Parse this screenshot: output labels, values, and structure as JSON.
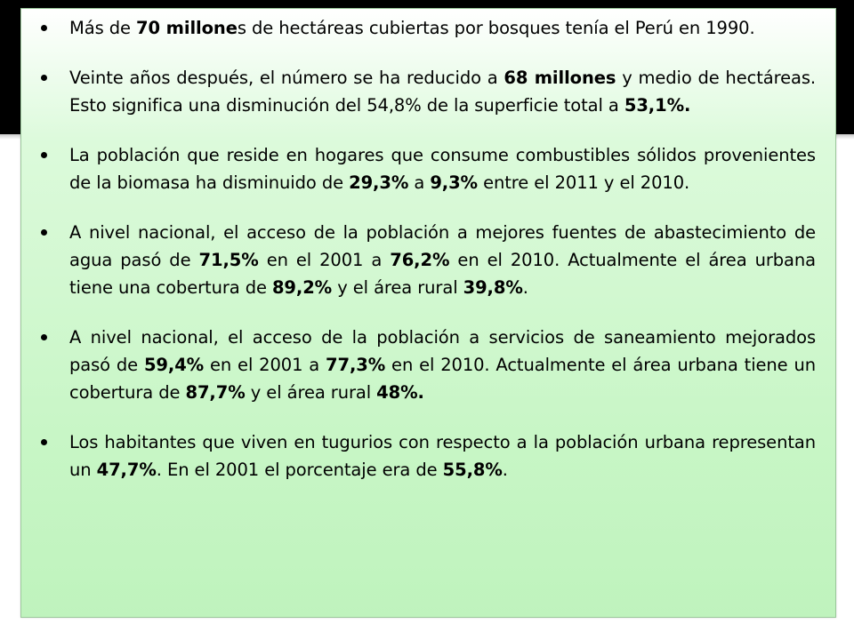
{
  "slide": {
    "bullets": [
      {
        "parts": [
          {
            "text": "Más de ",
            "bold": false
          },
          {
            "text": "70 millone",
            "bold": true
          },
          {
            "text": "s de hectáreas cubiertas por bosques tenía el Perú en 1990.",
            "bold": false
          }
        ]
      },
      {
        "parts": [
          {
            "text": "Veinte años después, el número se ha reducido a ",
            "bold": false
          },
          {
            "text": "68 millones",
            "bold": true
          },
          {
            "text": " y medio de hectáreas. Esto significa una disminución del 54,8% de la superficie total a ",
            "bold": false
          },
          {
            "text": "53,1%.",
            "bold": true
          }
        ]
      },
      {
        "parts": [
          {
            "text": "La población que reside en hogares que consume combustibles sólidos provenientes de la biomasa ha disminuido de ",
            "bold": false
          },
          {
            "text": "29,3%",
            "bold": true
          },
          {
            "text": " a ",
            "bold": false
          },
          {
            "text": "9,3%",
            "bold": true
          },
          {
            "text": " entre el 2011 y el 2010.",
            "bold": false
          }
        ]
      },
      {
        "parts": [
          {
            "text": "A nivel nacional, el acceso de la población a mejores fuentes de abastecimiento de agua pasó de ",
            "bold": false
          },
          {
            "text": "71,5%",
            "bold": true
          },
          {
            "text": " en el 2001 a ",
            "bold": false
          },
          {
            "text": "76,2%",
            "bold": true
          },
          {
            "text": " en el 2010. Actualmente el área urbana tiene una cobertura de ",
            "bold": false
          },
          {
            "text": "89,2%",
            "bold": true
          },
          {
            "text": " y el área rural ",
            "bold": false
          },
          {
            "text": "39,8%",
            "bold": true
          },
          {
            "text": ".",
            "bold": false
          }
        ]
      },
      {
        "parts": [
          {
            "text": "A nivel nacional, el acceso de la población a servicios de saneamiento mejorados pasó de ",
            "bold": false
          },
          {
            "text": "59,4%",
            "bold": true
          },
          {
            "text": " en el 2001 a ",
            "bold": false
          },
          {
            "text": "77,3%",
            "bold": true
          },
          {
            "text": " en el 2010. Actualmente el área urbana tiene un cobertura de ",
            "bold": false
          },
          {
            "text": "87,7%",
            "bold": true
          },
          {
            "text": " y el área rural ",
            "bold": false
          },
          {
            "text": "48%.",
            "bold": true
          }
        ]
      },
      {
        "parts": [
          {
            "text": "Los habitantes que viven en tugurios con respecto a la población urbana representan un ",
            "bold": false
          },
          {
            "text": "47,7%",
            "bold": true
          },
          {
            "text": ". En el 2001 el porcentaje era de ",
            "bold": false
          },
          {
            "text": "55,8%",
            "bold": true
          },
          {
            "text": ".",
            "bold": false
          }
        ]
      }
    ]
  }
}
